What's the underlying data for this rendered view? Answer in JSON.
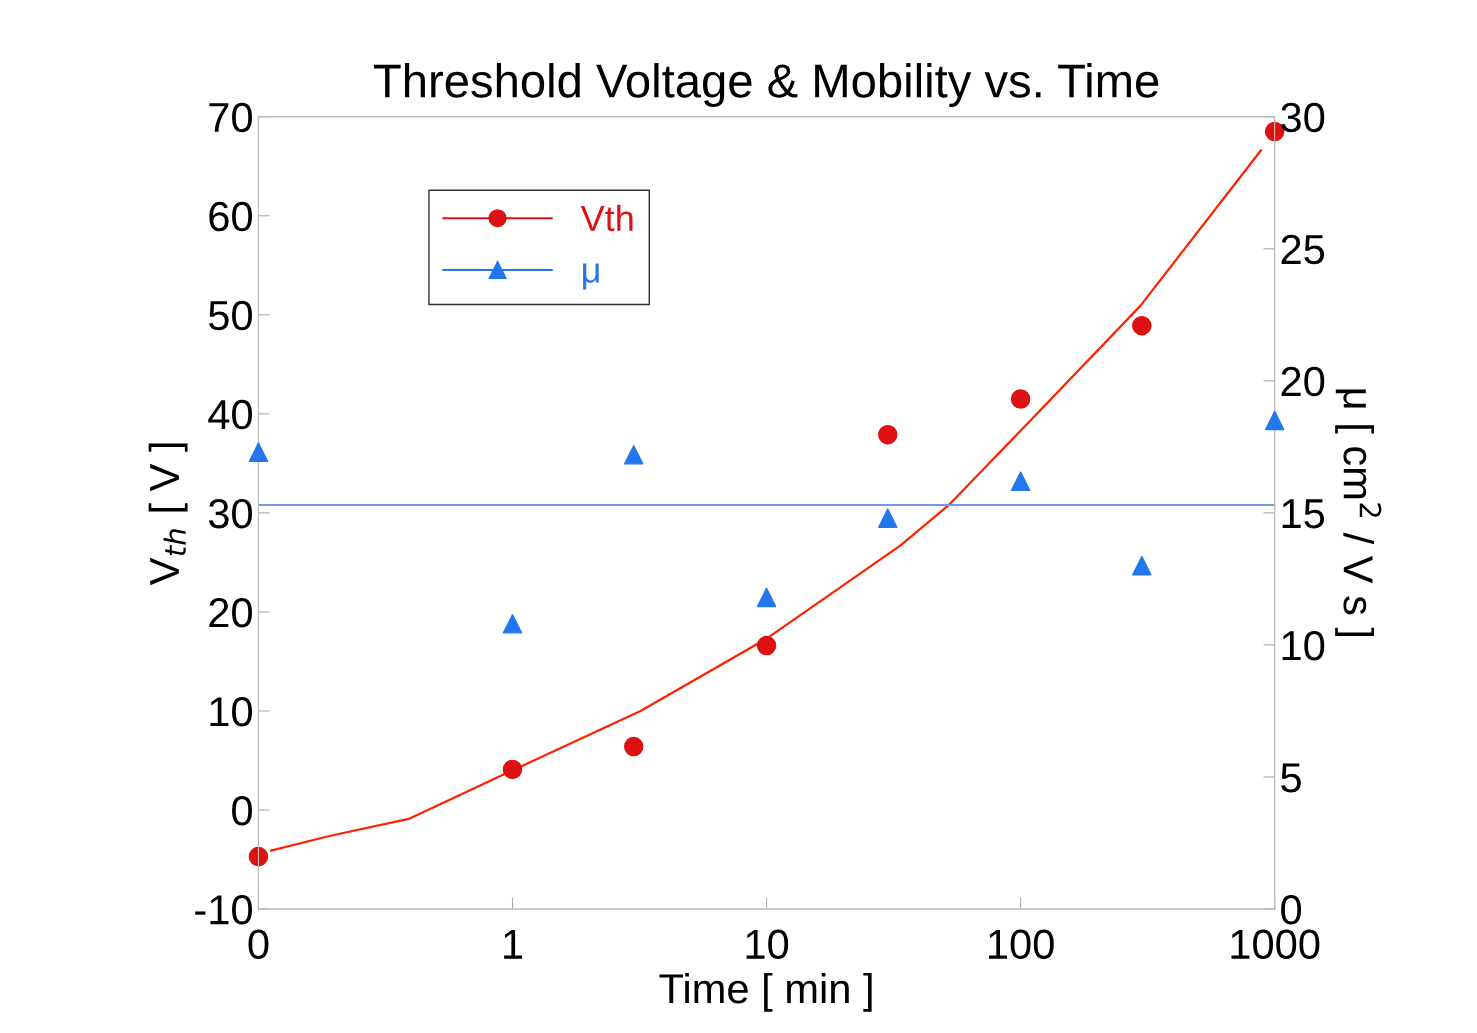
{
  "chart_data": {
    "type": "scatter",
    "title": "Threshold Voltage & Mobility vs. Time",
    "xlabel": "Time [ min ]",
    "ylabel": "V$_{th}$ [ V ]",
    "y2label": "μ [ cm$^{2}$ / V s ]",
    "log": "x",
    "xlim": [
      0.1,
      1000
    ],
    "xticks": [
      {
        "value": 0.1,
        "label": "0"
      },
      1,
      10,
      100,
      1000
    ],
    "ylim": [
      -10,
      70
    ],
    "yticks": [
      -10,
      0,
      10,
      20,
      30,
      40,
      50,
      60,
      70
    ],
    "y2lim": [
      0,
      30
    ],
    "y2ticks": [
      0,
      5,
      10,
      15,
      20,
      25,
      30
    ],
    "grid": false,
    "legend": "top left",
    "series": [
      {
        "name": "Vth",
        "color": "#dd1111",
        "marker": "circle",
        "x": [
          0.1,
          1,
          3,
          10,
          30,
          100,
          300,
          1000
        ],
        "values": [
          -4.7,
          4.1,
          6.4,
          16.6,
          37.9,
          41.5,
          48.9,
          68.5
        ]
      },
      {
        "type": "line",
        "color": "#ff2200",
        "marker": "none",
        "line_style": "solid",
        "x": [
          0.112,
          0.192,
          0.39,
          1,
          3.19,
          10,
          33.6,
          52.2,
          100,
          296,
          883
        ],
        "values": [
          -4.1,
          -2.6,
          -0.9,
          4,
          10,
          17.3,
          26.7,
          30.8,
          38.3,
          50.9,
          66.6
        ]
      },
      {
        "name": "μ",
        "axis": "y2",
        "color": "#2277ee",
        "marker": "triangle",
        "x": [
          0.1,
          1,
          3,
          10,
          30,
          100,
          300,
          1000
        ],
        "values": [
          17.3,
          10.8,
          17.2,
          11.8,
          14.8,
          16.2,
          13.0,
          18.5
        ]
      }
    ],
    "ref_lines": [
      {
        "axis": "y2",
        "value": 15.3,
        "color": "#6f9be0",
        "line_style": "solid"
      }
    ]
  }
}
